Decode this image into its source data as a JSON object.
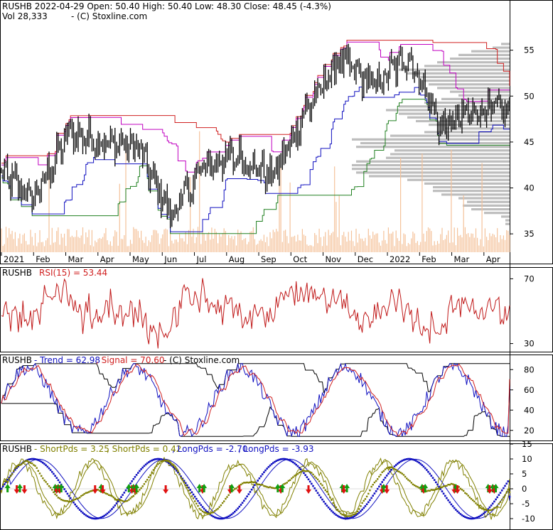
{
  "colors": {
    "price": "#000000",
    "volume": "#f4c29a",
    "volume_profile": "#bdbdbd",
    "band_upper": "#c000c0",
    "band_lower": "#1010c0",
    "band_red": "#d02020",
    "band_green": "#208020",
    "rsi": "#c01818",
    "trend": "#1010c0",
    "signal": "#d02020",
    "short_pds": "#808000",
    "long_pds": "#1010c0",
    "arrow_up": "#10a010",
    "arrow_down": "#e01010"
  },
  "chart_data": [
    {
      "type": "line",
      "panel": "price",
      "title": "RUSHB  2022-04-29 Open: 50.40  High: 50.40  Low: 48.30  Close: 48.45 (-4.3%)",
      "subtitle_vol": "Vol 28,333",
      "subtitle_copy": "- (C) Stoxline.com",
      "x_tick_labels": [
        "2021",
        "Feb",
        "Mar",
        "Apr",
        "May",
        "Jun",
        "Jul",
        "Aug",
        "Sep",
        "Oct",
        "Nov",
        "Dec",
        "2022",
        "Feb",
        "Mar",
        "Apr"
      ],
      "y_tick_labels": [
        "55",
        "50",
        "45",
        "40",
        "35"
      ],
      "ylim": [
        33,
        60
      ],
      "monthly_closes": [
        [
          "2021-01",
          41.5
        ],
        [
          "2021-02",
          39.0
        ],
        [
          "2021-03",
          46.0
        ],
        [
          "2021-04",
          45.0
        ],
        [
          "2021-05",
          44.5
        ],
        [
          "2021-06",
          37.0
        ],
        [
          "2021-07",
          42.5
        ],
        [
          "2021-08",
          43.5
        ],
        [
          "2021-09",
          41.0
        ],
        [
          "2021-10",
          48.5
        ],
        [
          "2021-11",
          54.0
        ],
        [
          "2021-12",
          51.0
        ],
        [
          "2022-01",
          54.5
        ],
        [
          "2022-02",
          46.5
        ],
        [
          "2022-03",
          48.5
        ],
        [
          "2022-04",
          48.45
        ]
      ],
      "volume_units": "shares",
      "volume_ylim_note": "volume bars in lower portion of price panel"
    },
    {
      "type": "line",
      "panel": "rsi",
      "label_ticker": "RUSHB",
      "label_rsi": "RSI(15) = 53.44",
      "y_tick_labels": [
        "70",
        "30"
      ],
      "ylim": [
        25,
        75
      ],
      "last_value": 53.44
    },
    {
      "type": "line",
      "panel": "trend",
      "label_ticker": "RUSHB",
      "label_trend": "Trend = 62.98",
      "label_signal": "Signal = 70.60",
      "label_copy": "- (C) Stoxline.com",
      "y_tick_labels": [
        "80",
        "60",
        "40",
        "20"
      ],
      "ylim": [
        10,
        90
      ],
      "series": [
        {
          "name": "Trend",
          "last": 62.98
        },
        {
          "name": "Signal",
          "last": 70.6
        }
      ]
    },
    {
      "type": "line",
      "panel": "pds",
      "label_ticker": "RUSHB",
      "label_short1": "ShortPds = 3.25",
      "label_short2": "ShortPds = 0.42",
      "label_long1": "LongPds = -2.70",
      "label_long2": "LongPds = -3.93",
      "y_tick_labels": [
        "15",
        "10",
        "5",
        "0",
        "-5",
        "-10"
      ],
      "ylim": [
        -13,
        16
      ],
      "series": [
        {
          "name": "ShortPds",
          "last": 3.25
        },
        {
          "name": "ShortPds",
          "last": 0.42
        },
        {
          "name": "LongPds",
          "last": -2.7
        },
        {
          "name": "LongPds",
          "last": -3.93
        }
      ]
    }
  ]
}
